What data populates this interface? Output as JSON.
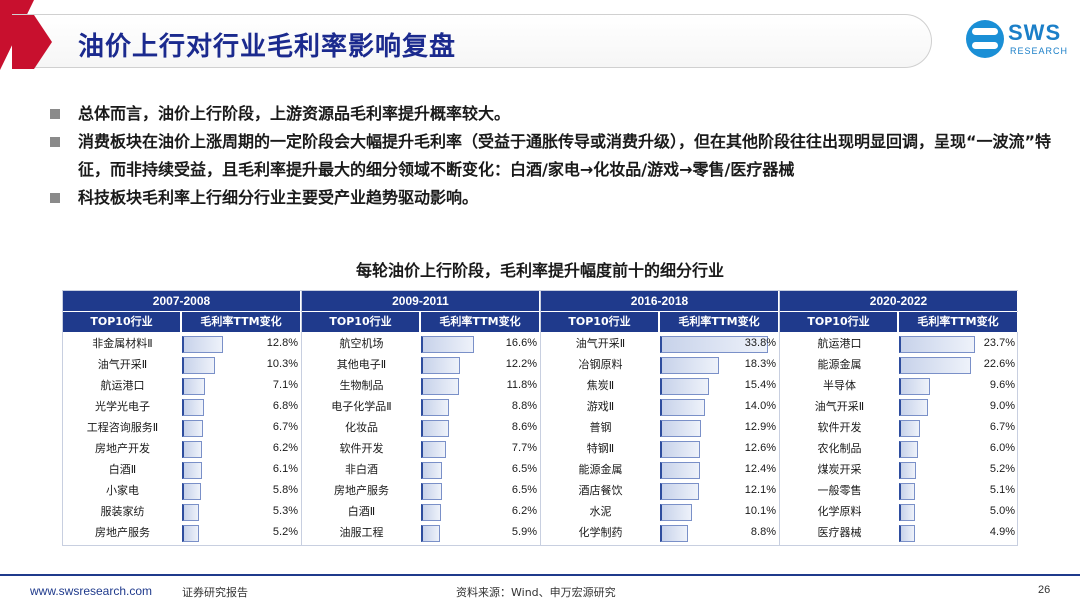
{
  "header": {
    "title": "油价上行对行业毛利率影响复盘",
    "logo_text": "SWS",
    "logo_sub": "RESEARCH",
    "colors": {
      "title": "#1b2a8e",
      "accent_red": "#c8102e",
      "logo_blue": "#1a8fd6"
    }
  },
  "bullets": [
    "总体而言，油价上行阶段，上游资源品毛利率提升概率较大。",
    "消费板块在油价上涨周期的一定阶段会大幅提升毛利率（受益于通胀传导或消费升级），但在其他阶段往往出现明显回调，呈现“一波流”特征，而非持续受益，且毛利率提升最大的细分领域不断变化：白酒/家电→化妆品/游戏→零售/医疗器械",
    "科技板块毛利率上行细分行业主要受产业趋势驱动影响。"
  ],
  "chart_title": "每轮油价上行阶段，毛利率提升幅度前十的细分行业",
  "chart_data": {
    "type": "table",
    "col_headers": [
      "TOP10行业",
      "毛利率TTM变化"
    ],
    "bar_scale_max": 35,
    "groups": [
      {
        "period": "2007-2008",
        "rows": [
          {
            "name": "非金属材料Ⅱ",
            "value": 12.8,
            "label": "12.8%"
          },
          {
            "name": "油气开采Ⅱ",
            "value": 10.3,
            "label": "10.3%"
          },
          {
            "name": "航运港口",
            "value": 7.1,
            "label": "7.1%"
          },
          {
            "name": "光学光电子",
            "value": 6.8,
            "label": "6.8%"
          },
          {
            "name": "工程咨询服务Ⅱ",
            "value": 6.7,
            "label": "6.7%"
          },
          {
            "name": "房地产开发",
            "value": 6.2,
            "label": "6.2%"
          },
          {
            "name": "白酒Ⅱ",
            "value": 6.1,
            "label": "6.1%"
          },
          {
            "name": "小家电",
            "value": 5.8,
            "label": "5.8%"
          },
          {
            "name": "服装家纺",
            "value": 5.3,
            "label": "5.3%"
          },
          {
            "name": "房地产服务",
            "value": 5.2,
            "label": "5.2%"
          }
        ]
      },
      {
        "period": "2009-2011",
        "rows": [
          {
            "name": "航空机场",
            "value": 16.6,
            "label": "16.6%"
          },
          {
            "name": "其他电子Ⅱ",
            "value": 12.2,
            "label": "12.2%"
          },
          {
            "name": "生物制品",
            "value": 11.8,
            "label": "11.8%"
          },
          {
            "name": "电子化学品Ⅱ",
            "value": 8.8,
            "label": "8.8%"
          },
          {
            "name": "化妆品",
            "value": 8.6,
            "label": "8.6%"
          },
          {
            "name": "软件开发",
            "value": 7.7,
            "label": "7.7%"
          },
          {
            "name": "非白酒",
            "value": 6.5,
            "label": "6.5%"
          },
          {
            "name": "房地产服务",
            "value": 6.5,
            "label": "6.5%"
          },
          {
            "name": "白酒Ⅱ",
            "value": 6.2,
            "label": "6.2%"
          },
          {
            "name": "油服工程",
            "value": 5.9,
            "label": "5.9%"
          }
        ]
      },
      {
        "period": "2016-2018",
        "rows": [
          {
            "name": "油气开采Ⅱ",
            "value": 33.8,
            "label": "33.8%"
          },
          {
            "name": "冶钢原料",
            "value": 18.3,
            "label": "18.3%"
          },
          {
            "name": "焦炭Ⅱ",
            "value": 15.4,
            "label": "15.4%"
          },
          {
            "name": "游戏Ⅱ",
            "value": 14.0,
            "label": "14.0%"
          },
          {
            "name": "普钢",
            "value": 12.9,
            "label": "12.9%"
          },
          {
            "name": "特钢Ⅱ",
            "value": 12.6,
            "label": "12.6%"
          },
          {
            "name": "能源金属",
            "value": 12.4,
            "label": "12.4%"
          },
          {
            "name": "酒店餐饮",
            "value": 12.1,
            "label": "12.1%"
          },
          {
            "name": "水泥",
            "value": 10.1,
            "label": "10.1%"
          },
          {
            "name": "化学制药",
            "value": 8.8,
            "label": "8.8%"
          }
        ]
      },
      {
        "period": "2020-2022",
        "rows": [
          {
            "name": "航运港口",
            "value": 23.7,
            "label": "23.7%"
          },
          {
            "name": "能源金属",
            "value": 22.6,
            "label": "22.6%"
          },
          {
            "name": "半导体",
            "value": 9.6,
            "label": "9.6%"
          },
          {
            "name": "油气开采Ⅱ",
            "value": 9.0,
            "label": "9.0%"
          },
          {
            "name": "软件开发",
            "value": 6.7,
            "label": "6.7%"
          },
          {
            "name": "农化制品",
            "value": 6.0,
            "label": "6.0%"
          },
          {
            "name": "煤炭开采",
            "value": 5.2,
            "label": "5.2%"
          },
          {
            "name": "一般零售",
            "value": 5.1,
            "label": "5.1%"
          },
          {
            "name": "化学原料",
            "value": 5.0,
            "label": "5.0%"
          },
          {
            "name": "医疗器械",
            "value": 4.9,
            "label": "4.9%"
          }
        ]
      }
    ]
  },
  "footer": {
    "url": "www.swsresearch.com",
    "report": "证券研究报告",
    "source": "资料来源：Wind、申万宏源研究",
    "page": "26"
  }
}
